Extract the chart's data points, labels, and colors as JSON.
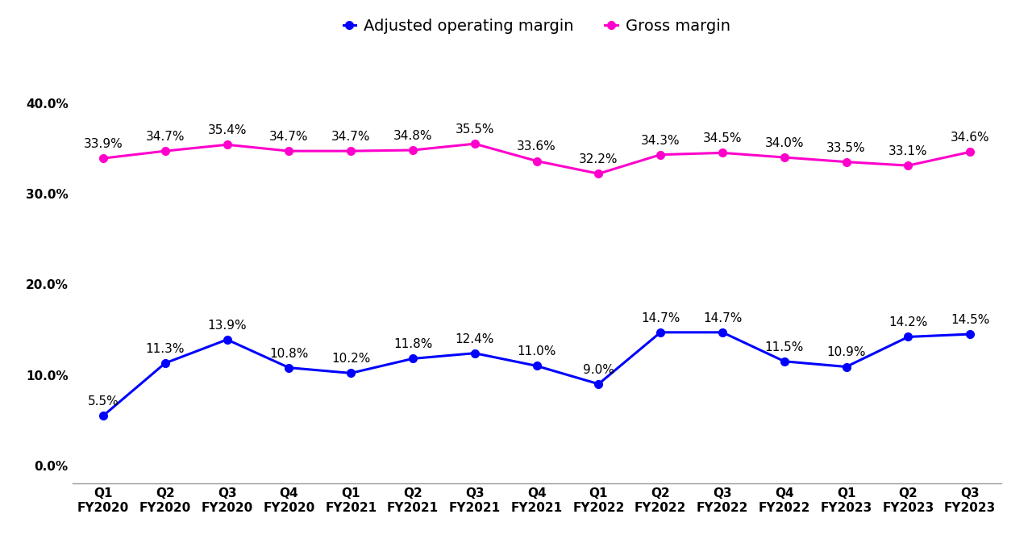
{
  "categories": [
    "Q1\nFY2020",
    "Q2\nFY2020",
    "Q3\nFY2020",
    "Q4\nFY2020",
    "Q1\nFY2021",
    "Q2\nFY2021",
    "Q3\nFY2021",
    "Q4\nFY2021",
    "Q1\nFY2022",
    "Q2\nFY2022",
    "Q3\nFY2022",
    "Q4\nFY2022",
    "Q1\nFY2023",
    "Q2\nFY2023",
    "Q3\nFY2023"
  ],
  "adj_op_margin": [
    5.5,
    11.3,
    13.9,
    10.8,
    10.2,
    11.8,
    12.4,
    11.0,
    9.0,
    14.7,
    14.7,
    11.5,
    10.9,
    14.2,
    14.5
  ],
  "gross_margin": [
    33.9,
    34.7,
    35.4,
    34.7,
    34.7,
    34.8,
    35.5,
    33.6,
    32.2,
    34.3,
    34.5,
    34.0,
    33.5,
    33.1,
    34.6
  ],
  "adj_op_margin_labels": [
    "5.5%",
    "11.3%",
    "13.9%",
    "10.8%",
    "10.2%",
    "11.8%",
    "12.4%",
    "11.0%",
    "9.0%",
    "14.7%",
    "14.7%",
    "11.5%",
    "10.9%",
    "14.2%",
    "14.5%"
  ],
  "gross_margin_labels": [
    "33.9%",
    "34.7%",
    "35.4%",
    "34.7%",
    "34.7%",
    "34.8%",
    "35.5%",
    "33.6%",
    "32.2%",
    "34.3%",
    "34.5%",
    "34.0%",
    "33.5%",
    "33.1%",
    "34.6%"
  ],
  "adj_op_color": "#0000ff",
  "gross_color": "#ff00cc",
  "legend_adj_label": "Adjusted operating margin",
  "legend_gross_label": "Gross margin",
  "yticks": [
    0.0,
    10.0,
    20.0,
    30.0,
    40.0
  ],
  "ytick_labels": [
    "0.0%",
    "10.0%",
    "20.0%",
    "30.0%",
    "40.0%"
  ],
  "ylim_min": -2.0,
  "ylim_max": 44.0,
  "background_color": "#ffffff",
  "line_width": 2.2,
  "marker_size": 7,
  "label_fontsize": 11,
  "axis_tick_fontsize": 11,
  "legend_fontsize": 14
}
